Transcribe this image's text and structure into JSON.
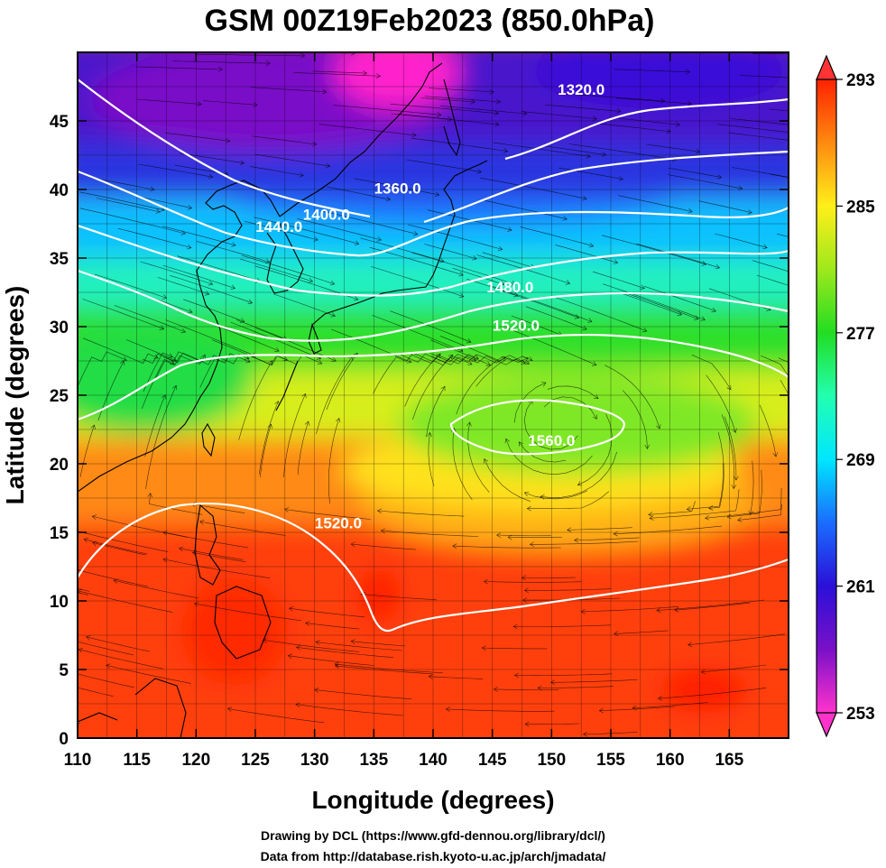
{
  "title": "GSM 00Z19Feb2023 (850.0hPa)",
  "x_axis": {
    "label": "Longitude (degrees)",
    "range": [
      110,
      170
    ],
    "ticks": [
      110,
      115,
      120,
      125,
      130,
      135,
      140,
      145,
      150,
      155,
      160,
      165
    ]
  },
  "y_axis": {
    "label": "Latitude  (degrees)",
    "range": [
      0,
      50
    ],
    "ticks": [
      0,
      5,
      10,
      15,
      20,
      25,
      30,
      35,
      40,
      45
    ]
  },
  "colorbar": {
    "range": [
      253,
      293
    ],
    "labels": [
      253,
      261,
      269,
      277,
      285,
      293
    ],
    "colors": {
      "253": "#ff33cc",
      "257": "#7a10c8",
      "261": "#2a10d8",
      "265": "#1a6cff",
      "269": "#00e6ff",
      "273": "#22ffb0",
      "277": "#22dd22",
      "281": "#9ee81c",
      "285": "#ffef1a",
      "289": "#ff8a10",
      "293": "#ff2200"
    }
  },
  "contours": [
    {
      "label": "1320.0",
      "lon": 152.5,
      "lat": 46.9
    },
    {
      "label": "1360.0",
      "lon": 137.0,
      "lat": 39.7
    },
    {
      "label": "1400.0",
      "lon": 131.0,
      "lat": 37.8
    },
    {
      "label": "1440.0",
      "lon": 127.0,
      "lat": 36.9
    },
    {
      "label": "1480.0",
      "lon": 146.5,
      "lat": 32.5
    },
    {
      "label": "1520.0",
      "lon": 147.0,
      "lat": 29.7
    },
    {
      "label": "1560.0",
      "lon": 150.0,
      "lat": 21.3
    },
    {
      "label": "1520.0",
      "lon": 132.0,
      "lat": 15.3
    }
  ],
  "credits": {
    "line1": "Drawing by DCL (https://www.gfd-dennou.org/library/dcl/)",
    "line2": "Data from http://database.rish.kyoto-u.ac.jp/arch/jmadata/"
  }
}
